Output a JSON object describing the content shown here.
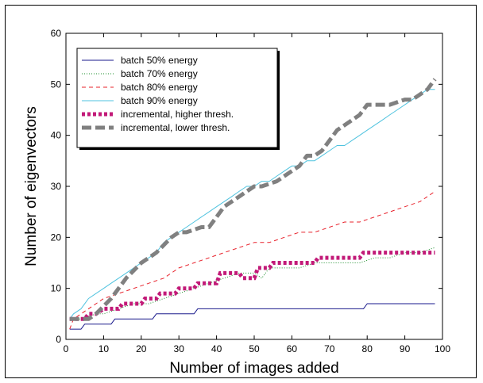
{
  "chart_data": {
    "type": "line",
    "title": "",
    "xlabel": "Number of images added",
    "ylabel": "Number of eigenvectors",
    "xlim": [
      0,
      100
    ],
    "ylim": [
      0,
      60
    ],
    "xticks": [
      "0",
      "10",
      "20",
      "30",
      "40",
      "50",
      "60",
      "70",
      "80",
      "90",
      "100"
    ],
    "yticks": [
      "0",
      "10",
      "20",
      "30",
      "40",
      "50",
      "60"
    ],
    "grid": false,
    "legend_position": "top-left",
    "series": [
      {
        "name": "batch 50% energy",
        "color": "#1a1a8c",
        "style": "solid",
        "x": [
          1,
          3,
          4,
          5,
          12,
          13,
          23,
          24,
          34,
          35,
          79,
          80,
          98
        ],
        "y": [
          2,
          2,
          2,
          3,
          3,
          4,
          4,
          5,
          5,
          6,
          6,
          7,
          7
        ]
      },
      {
        "name": "batch 70% energy",
        "color": "#1a8c2a",
        "style": "dotted",
        "x": [
          1,
          2,
          4,
          8,
          10,
          14,
          18,
          22,
          26,
          30,
          34,
          38,
          42,
          46,
          50,
          52,
          54,
          58,
          62,
          66,
          70,
          74,
          78,
          82,
          86,
          90,
          94,
          98
        ],
        "y": [
          4,
          4,
          4,
          5,
          5,
          6,
          7,
          7,
          8,
          9,
          10,
          11,
          12,
          13,
          13,
          12,
          14,
          14,
          14,
          15,
          15,
          15,
          15,
          16,
          16,
          17,
          17,
          18
        ]
      },
      {
        "name": "batch 80% energy",
        "color": "#e8202a",
        "style": "dashed",
        "x": [
          1,
          2,
          4,
          6,
          8,
          10,
          14,
          18,
          22,
          26,
          30,
          34,
          38,
          42,
          46,
          50,
          54,
          58,
          62,
          66,
          70,
          74,
          78,
          82,
          86,
          90,
          94,
          98
        ],
        "y": [
          2,
          4,
          5,
          6,
          7,
          8,
          9,
          10,
          11,
          12,
          14,
          15,
          16,
          17,
          18,
          19,
          19,
          20,
          21,
          21,
          22,
          23,
          23,
          24,
          25,
          26,
          27,
          29
        ]
      },
      {
        "name": "batch 90% energy",
        "color": "#4fc3df",
        "style": "solid",
        "x": [
          1,
          2,
          4,
          6,
          8,
          10,
          12,
          14,
          16,
          18,
          20,
          22,
          24,
          26,
          28,
          30,
          32,
          34,
          36,
          38,
          40,
          42,
          44,
          46,
          48,
          50,
          52,
          54,
          56,
          58,
          60,
          62,
          64,
          66,
          68,
          70,
          72,
          74,
          76,
          78,
          80,
          82,
          84,
          86,
          88,
          90,
          92,
          94,
          96,
          98
        ],
        "y": [
          4,
          5,
          6,
          8,
          9,
          10,
          11,
          12,
          13,
          14,
          15,
          16,
          17,
          19,
          20,
          21,
          22,
          23,
          24,
          25,
          26,
          27,
          28,
          29,
          30,
          30,
          31,
          31,
          32,
          33,
          34,
          34,
          35,
          35,
          36,
          37,
          38,
          38,
          39,
          40,
          41,
          42,
          43,
          44,
          45,
          46,
          47,
          48,
          49,
          49
        ]
      },
      {
        "name": "incremental, higher thresh.",
        "color": "#c21a78",
        "style": "thick-dotted",
        "x": [
          1,
          5,
          6,
          8,
          10,
          14,
          15,
          20,
          21,
          24,
          25,
          29,
          30,
          34,
          35,
          40,
          41,
          46,
          47,
          50,
          51,
          54,
          55,
          66,
          67,
          78,
          79,
          98
        ],
        "y": [
          4,
          4,
          5,
          5,
          6,
          6,
          7,
          7,
          8,
          8,
          9,
          9,
          10,
          10,
          11,
          11,
          13,
          13,
          12,
          12,
          14,
          14,
          15,
          15,
          16,
          16,
          17,
          17
        ]
      },
      {
        "name": "incremental, lower thresh.",
        "color": "#808080",
        "style": "thick-dashed",
        "x": [
          1,
          6,
          8,
          12,
          16,
          20,
          22,
          24,
          28,
          30,
          32,
          36,
          38,
          40,
          42,
          46,
          48,
          50,
          52,
          56,
          58,
          60,
          62,
          64,
          66,
          68,
          70,
          72,
          74,
          76,
          78,
          80,
          82,
          86,
          90,
          92,
          94,
          96,
          98
        ],
        "y": [
          4,
          4,
          5,
          8,
          12,
          15,
          16,
          17,
          20,
          21,
          21,
          22,
          22,
          24,
          26,
          28,
          29,
          30,
          30,
          31,
          32,
          33,
          34,
          36,
          36,
          37,
          39,
          41,
          42,
          43,
          44,
          46,
          46,
          46,
          47,
          47,
          48,
          49,
          51
        ]
      }
    ]
  }
}
